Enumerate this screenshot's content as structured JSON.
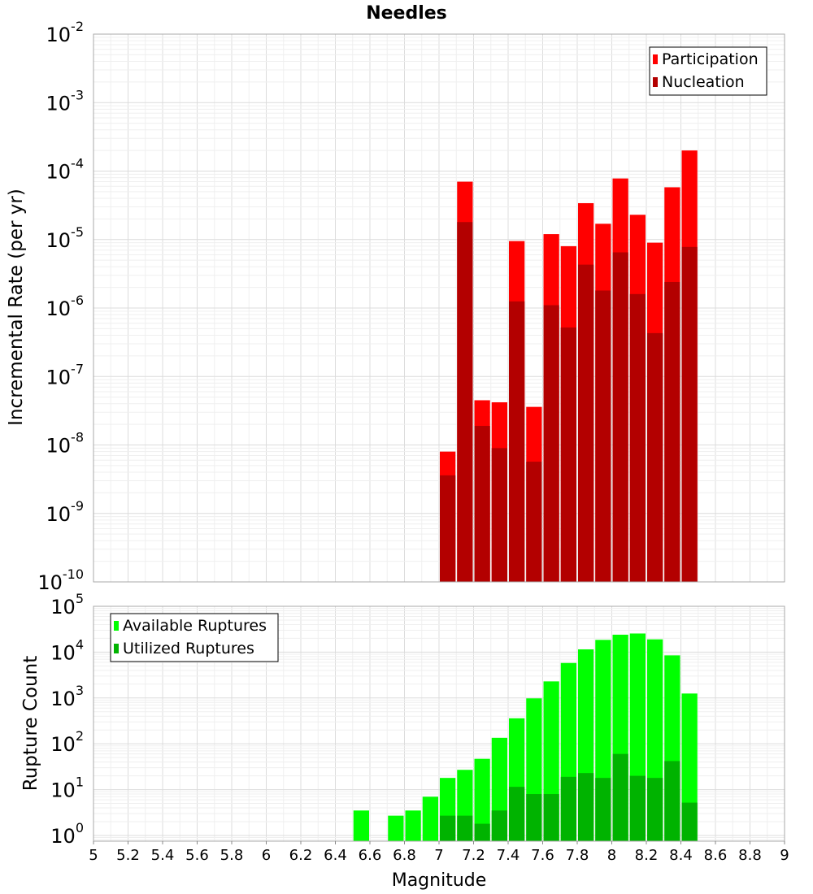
{
  "colors": {
    "participation": "#ff0000",
    "nucleation": "#b30000",
    "available": "#00ff00",
    "utilized": "#00b300",
    "grid_major": "#dcdcdc",
    "grid_minor": "#efefef",
    "frame": "#aaaaaa"
  },
  "chart_data": [
    {
      "type": "bar",
      "title": "Needles",
      "xlabel": "",
      "ylabel": "Incremental Rate (per yr)",
      "yscale": "log",
      "xlim": [
        5,
        9
      ],
      "ylim": [
        1e-10,
        0.01
      ],
      "y_tick_exponents": [
        "-10",
        "-9",
        "-8",
        "-7",
        "-6",
        "-5",
        "-4",
        "-3",
        "-2"
      ],
      "legend_position": "top-right",
      "grid": true,
      "x": [
        7.05,
        7.15,
        7.25,
        7.35,
        7.45,
        7.55,
        7.65,
        7.75,
        7.85,
        7.95,
        8.05,
        8.15,
        8.25,
        8.35,
        8.45
      ],
      "series": [
        {
          "name": "Participation",
          "color": "#ff0000",
          "values": [
            8e-09,
            7e-05,
            4.5e-08,
            4.2e-08,
            9.5e-06,
            3.6e-08,
            1.2e-05,
            8e-06,
            3.4e-05,
            1.7e-05,
            7.8e-05,
            2.3e-05,
            9e-06,
            5.8e-05,
            0.0002
          ]
        },
        {
          "name": "Nucleation",
          "color": "#b30000",
          "values": [
            3.6e-09,
            1.8e-05,
            1.9e-08,
            9e-09,
            1.25e-06,
            5.7e-09,
            1.1e-06,
            5.2e-07,
            4.3e-06,
            1.8e-06,
            6.5e-06,
            1.6e-06,
            4.3e-07,
            2.4e-06,
            7.8e-06
          ]
        }
      ]
    },
    {
      "type": "bar",
      "title": "",
      "xlabel": "Magnitude",
      "ylabel": "Rupture Count",
      "yscale": "log",
      "xlim": [
        5,
        9
      ],
      "ylim": [
        0.75,
        100000.0
      ],
      "x_tick_labels": [
        "5",
        "5.2",
        "5.4",
        "5.6",
        "5.8",
        "6",
        "6.2",
        "6.4",
        "6.6",
        "6.8",
        "7",
        "7.2",
        "7.4",
        "7.6",
        "7.8",
        "8",
        "8.2",
        "8.4",
        "8.6",
        "8.8",
        "9"
      ],
      "y_tick_exponents": [
        "0",
        "1",
        "2",
        "3",
        "4",
        "5"
      ],
      "legend_position": "top-left",
      "grid": true,
      "x": [
        6.55,
        6.75,
        6.85,
        6.95,
        7.05,
        7.15,
        7.25,
        7.35,
        7.45,
        7.55,
        7.65,
        7.75,
        7.85,
        7.95,
        8.05,
        8.15,
        8.25,
        8.35,
        8.45
      ],
      "series": [
        {
          "name": "Available Ruptures",
          "color": "#00ff00",
          "values": [
            3.5,
            2.7,
            3.5,
            7,
            18,
            27,
            47,
            135,
            360,
            980,
            2300,
            5800,
            11500,
            18500,
            24000,
            25500,
            19000,
            8500,
            1250
          ]
        },
        {
          "name": "Utilized Ruptures",
          "color": "#00b300",
          "values": [
            null,
            null,
            null,
            null,
            2.7,
            2.7,
            1.8,
            3.5,
            11.5,
            8,
            8,
            19,
            23,
            18,
            60,
            20,
            18,
            42,
            5.2
          ]
        }
      ]
    }
  ]
}
